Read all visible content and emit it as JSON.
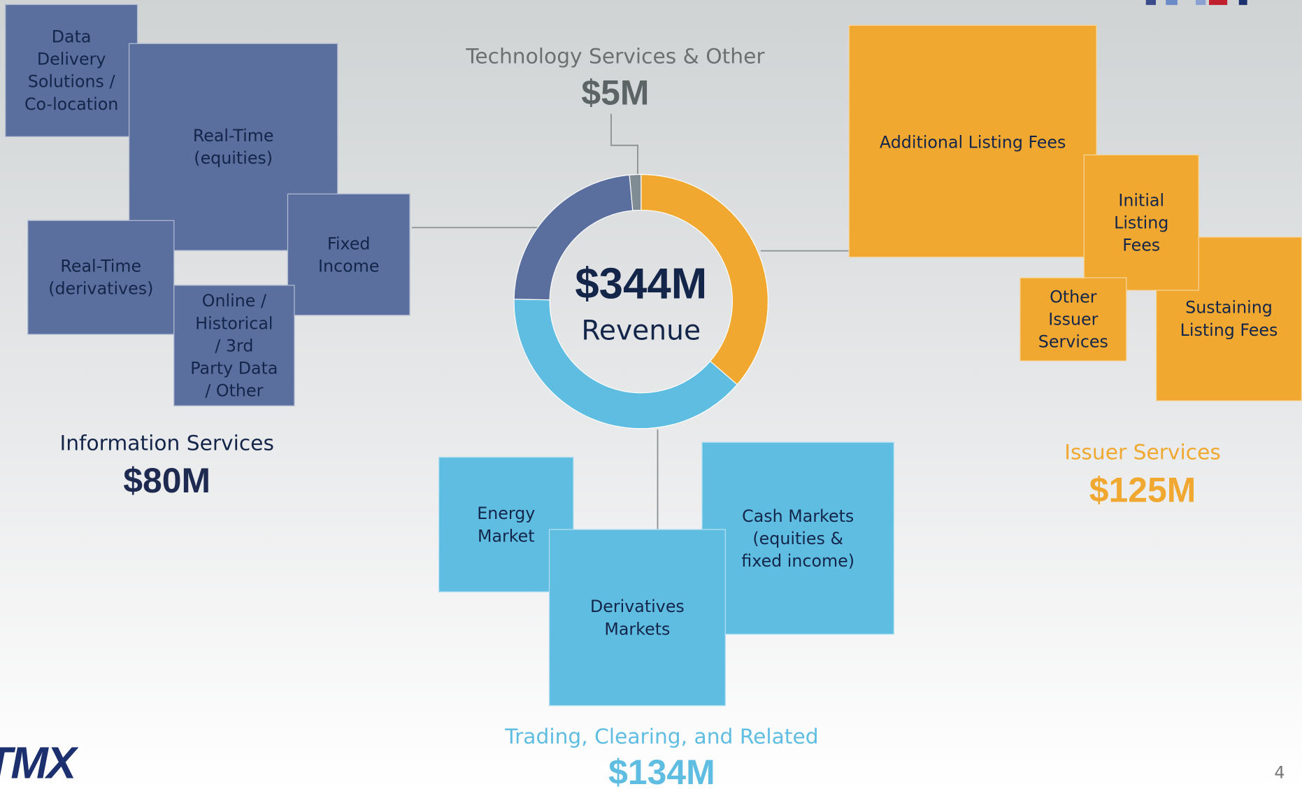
{
  "center": {
    "value_label": "$344M",
    "label": "Revenue"
  },
  "segments": [
    {
      "name": "Issuer Services",
      "value": 125,
      "value_label": "$125M",
      "color": "#f0a830",
      "items": [
        {
          "lines": [
            "Additional Listing Fees"
          ]
        },
        {
          "lines": [
            "Sustaining",
            "Listing Fees"
          ]
        },
        {
          "lines": [
            "Initial",
            "Listing",
            "Fees"
          ]
        },
        {
          "lines": [
            "Other",
            "Issuer",
            "Services"
          ]
        }
      ]
    },
    {
      "name": "Trading, Clearing, and Related",
      "value": 134,
      "value_label": "$134M",
      "color": "#5fbde2",
      "items": [
        {
          "lines": [
            "Energy",
            "Market"
          ]
        },
        {
          "lines": [
            "Cash Markets",
            "(equities &",
            "fixed income)"
          ]
        },
        {
          "lines": [
            "Derivatives",
            "Markets"
          ]
        }
      ]
    },
    {
      "name": "Information Services",
      "value": 80,
      "value_label": "$80M",
      "color": "#5a6f9e",
      "items": [
        {
          "lines": [
            "Data",
            "Delivery",
            "Solutions /",
            "Co-location"
          ]
        },
        {
          "lines": [
            "Real-Time",
            "(equities)"
          ]
        },
        {
          "lines": [
            "Real-Time",
            "(derivatives)"
          ]
        },
        {
          "lines": [
            "Fixed",
            "Income"
          ]
        },
        {
          "lines": [
            "Online /",
            "Historical",
            "/ 3rd",
            "Party Data",
            "/ Other"
          ]
        }
      ]
    },
    {
      "name": "Technology Services & Other",
      "value": 5,
      "value_label": "$5M",
      "color": "#7f8c93",
      "items": []
    }
  ],
  "logo": "TMX",
  "page_number": "4"
}
